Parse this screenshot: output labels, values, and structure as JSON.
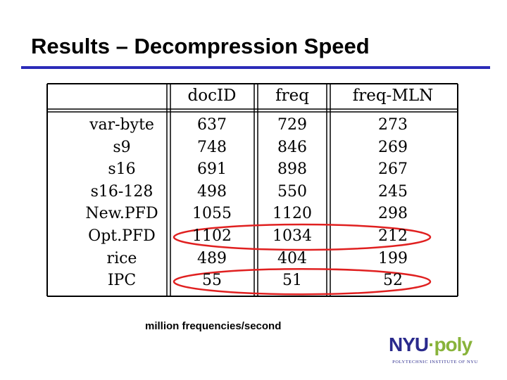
{
  "slide": {
    "title": "Results – Decompression Speed",
    "caption": "million frequencies/second"
  },
  "table": {
    "columns": [
      "docID",
      "freq",
      "freq-MLN"
    ],
    "rows": [
      {
        "label": "var-byte",
        "values": [
          "637",
          "729",
          "273"
        ]
      },
      {
        "label": "s9",
        "values": [
          "748",
          "846",
          "269"
        ]
      },
      {
        "label": "s16",
        "values": [
          "691",
          "898",
          "267"
        ]
      },
      {
        "label": "s16-128",
        "values": [
          "498",
          "550",
          "245"
        ]
      },
      {
        "label": "New.PFD",
        "values": [
          "1055",
          "1120",
          "298"
        ]
      },
      {
        "label": "Opt.PFD",
        "values": [
          "1102",
          "1034",
          "212"
        ]
      },
      {
        "label": "rice",
        "values": [
          "489",
          "404",
          "199"
        ]
      },
      {
        "label": "IPC",
        "values": [
          "55",
          "51",
          "52"
        ]
      }
    ],
    "highlighted_rows": [
      "Opt.PFD",
      "IPC"
    ],
    "highlight_color": "#e02020"
  },
  "logo": {
    "nyu": "NYU",
    "dot": "·",
    "poly": "poly",
    "subtitle": "POLYTECHNIC INSTITUTE OF NYU",
    "colors": {
      "nyu": "#2a2a8c",
      "poly": "#88b33a"
    }
  },
  "colors": {
    "title_rule": "#2b2bb8",
    "table_lines": "#000000"
  }
}
